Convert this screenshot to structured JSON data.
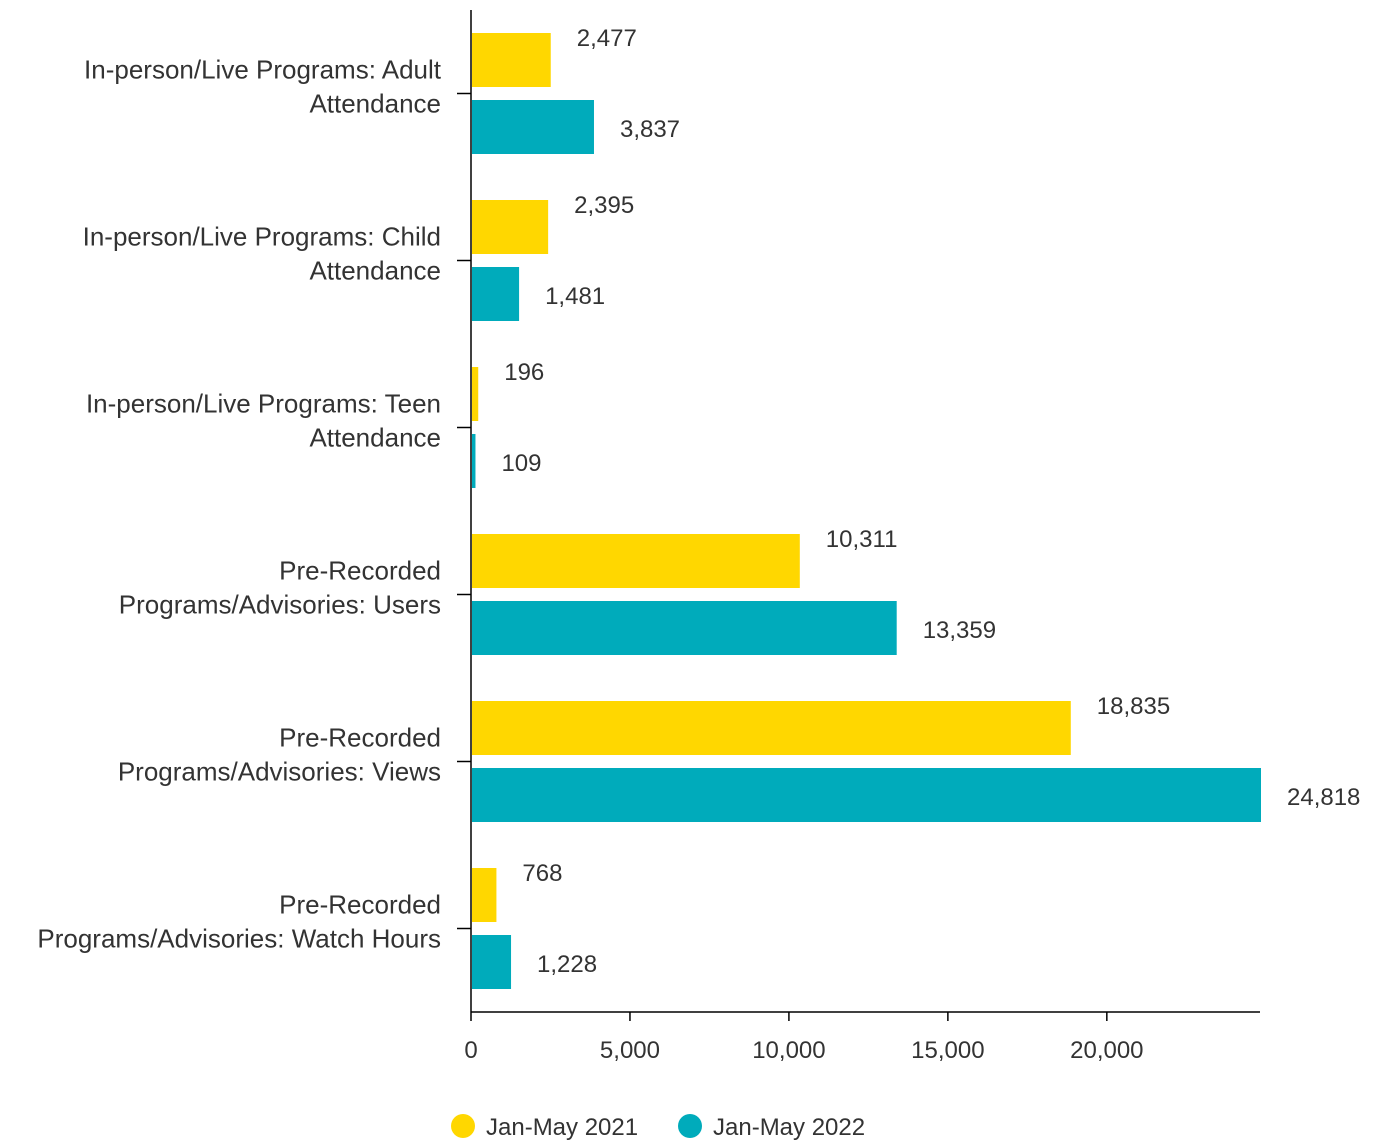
{
  "chart_data": {
    "type": "bar",
    "orientation": "horizontal",
    "categories": [
      [
        "In-person/Live Programs: Adult",
        "Attendance"
      ],
      [
        "In-person/Live Programs: Child",
        "Attendance"
      ],
      [
        "In-person/Live Programs: Teen",
        "Attendance"
      ],
      [
        "Pre-Recorded",
        "Programs/Advisories: Users"
      ],
      [
        "Pre-Recorded",
        "Programs/Advisories: Views"
      ],
      [
        "Pre-Recorded",
        "Programs/Advisories: Watch Hours"
      ]
    ],
    "series": [
      {
        "name": "Jan-May 2021",
        "color": "#FFD700",
        "values": [
          2477,
          2395,
          196,
          10311,
          18835,
          768
        ],
        "labels": [
          "2,477",
          "2,395",
          "196",
          "10,311",
          "18,835",
          "768"
        ]
      },
      {
        "name": "Jan-May 2022",
        "color": "#00ABBB",
        "values": [
          3837,
          1481,
          109,
          13359,
          24818,
          1228
        ],
        "labels": [
          "3,837",
          "1,481",
          "109",
          "13,359",
          "24,818",
          "1,228"
        ]
      }
    ],
    "xlim": [
      0,
      24818
    ],
    "xticks": [
      0,
      5000,
      10000,
      15000,
      20000
    ],
    "xtick_labels": [
      "0",
      "5,000",
      "10,000",
      "15,000",
      "20,000"
    ],
    "grid": false,
    "legend_position": "bottom-center",
    "title": "",
    "xlabel": "",
    "ylabel": ""
  }
}
